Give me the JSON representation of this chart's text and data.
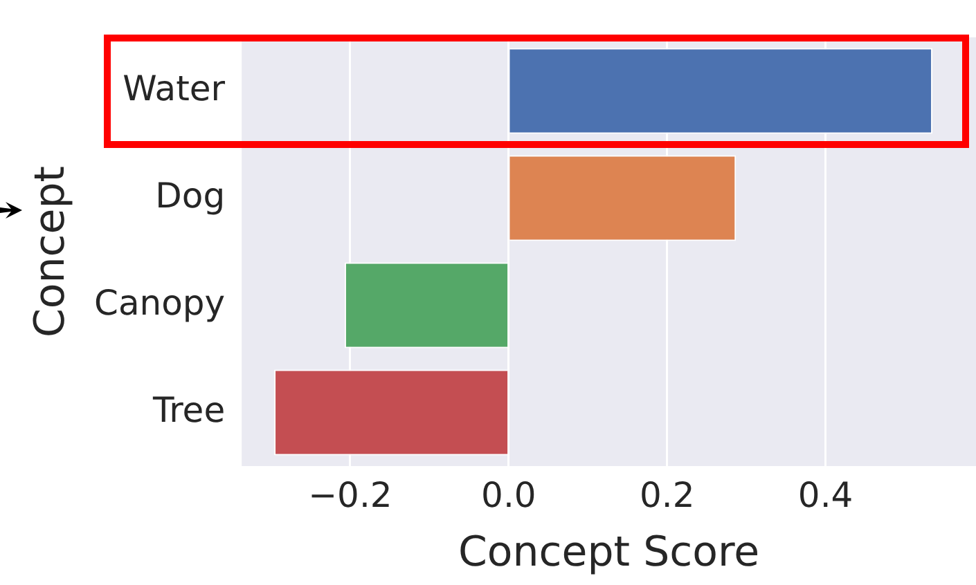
{
  "chart_data": {
    "type": "bar",
    "orientation": "horizontal",
    "xlabel": "Concept Score",
    "ylabel": "Concept",
    "categories": [
      "Water",
      "Dog",
      "Canopy",
      "Tree"
    ],
    "values": [
      0.535,
      0.287,
      -0.207,
      -0.296
    ],
    "colors": [
      "#4c72b0",
      "#dd8452",
      "#55a868",
      "#c44e52"
    ],
    "xlim": [
      -0.337,
      0.59
    ],
    "xticks": [
      {
        "value": -0.2,
        "label": "−0.2"
      },
      {
        "value": 0,
        "label": "0.0"
      },
      {
        "value": 0.2,
        "label": "0.2"
      },
      {
        "value": 0.4,
        "label": "0.4"
      }
    ],
    "grid": "x"
  }
}
